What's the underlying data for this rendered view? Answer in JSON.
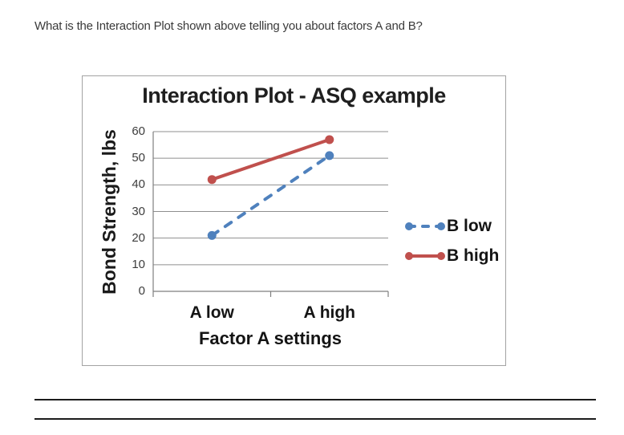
{
  "page": {
    "question": "What is the Interaction Plot shown above telling you about factors A and B?",
    "answer_line_count": 2
  },
  "chart_data": {
    "type": "line",
    "title": "Interaction Plot - ASQ example",
    "xlabel": "Factor A settings",
    "ylabel": "Bond Strength, lbs",
    "categories": [
      "A low",
      "A high"
    ],
    "series": [
      {
        "name": "B low",
        "values": [
          21,
          51
        ],
        "color": "#4F81BD",
        "style": "dashed"
      },
      {
        "name": "B high",
        "values": [
          42,
          57
        ],
        "color": "#C0504D",
        "style": "solid"
      }
    ],
    "ylim": [
      0,
      60
    ],
    "yticks": [
      0,
      10,
      20,
      30,
      40,
      50,
      60
    ],
    "grid": true,
    "legend_position": "right",
    "grid_color": "#8f8f8f",
    "axis_color": "#7f7f7f"
  }
}
